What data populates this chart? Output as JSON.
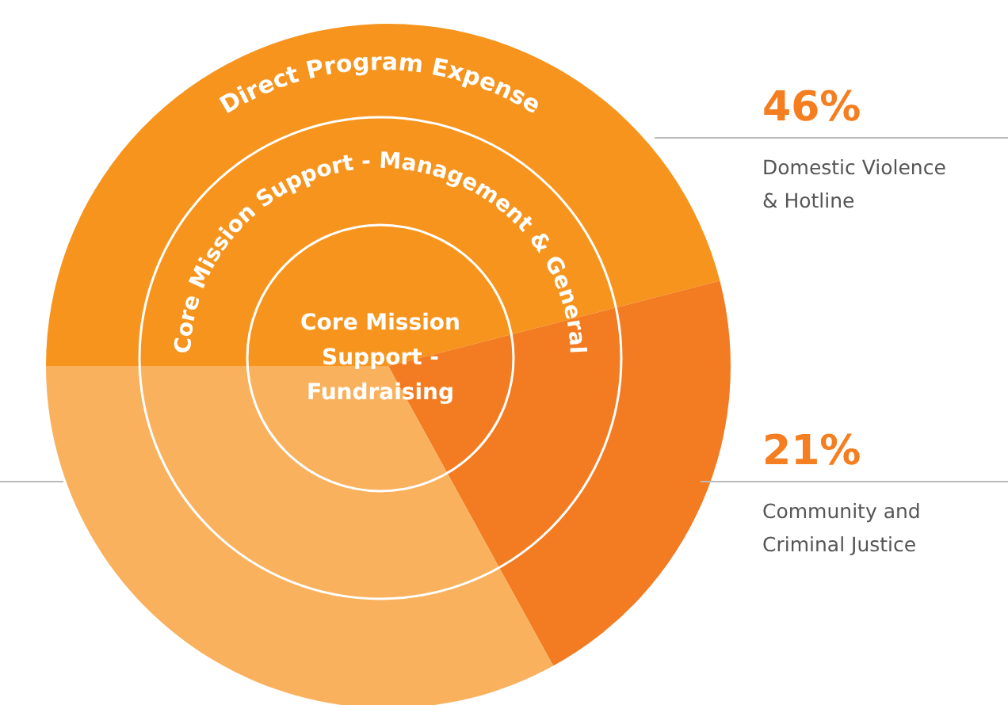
{
  "chart_data": {
    "type": "pie",
    "categories": [
      "Domestic Violence & Hotline",
      "Community and Criminal Justice",
      null
    ],
    "values": [
      46,
      21,
      33
    ],
    "colors": [
      "#f7941d",
      "#f37b21",
      "#f9b15d"
    ],
    "value_labels": [
      "46%",
      "21%",
      null
    ],
    "legend": false,
    "annotations": [
      "Direct Program Expense",
      "Core Mission Support - Management & General",
      "Core Mission Support - Fundraising"
    ]
  }
}
